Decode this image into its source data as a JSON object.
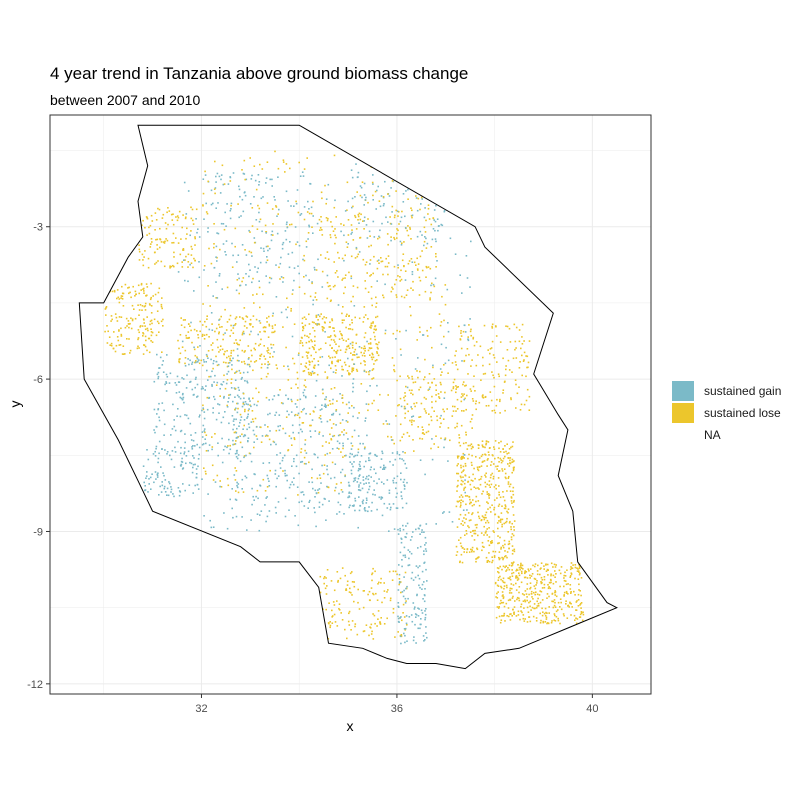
{
  "chart_data": {
    "type": "raster-map",
    "title": "4 year trend in Tanzania above ground biomass change",
    "subtitle": "between 2007 and 2010",
    "xlabel": "x",
    "ylabel": "y",
    "xlim": [
      28.9,
      41.2
    ],
    "ylim": [
      -12.2,
      -0.8
    ],
    "x_ticks": [
      32,
      36,
      40
    ],
    "y_ticks": [
      -3,
      -6,
      -9,
      -12
    ],
    "x_tick_labels": [
      "32",
      "36",
      "40"
    ],
    "y_tick_labels": [
      "-3",
      "-6",
      "-9",
      "-12"
    ],
    "grid": true,
    "legend_position": "right",
    "legend": [
      {
        "label": "sustained gain",
        "color": "#7bbac8"
      },
      {
        "label": "sustained lose",
        "color": "#ecc62c"
      },
      {
        "label": "NA",
        "color": "#ffffff"
      }
    ],
    "boundary": [
      [
        30.7,
        -1.0
      ],
      [
        34.0,
        -1.0
      ],
      [
        37.6,
        -3.0
      ],
      [
        37.8,
        -3.4
      ],
      [
        39.2,
        -4.7
      ],
      [
        38.8,
        -5.9
      ],
      [
        39.3,
        -6.7
      ],
      [
        39.5,
        -7.0
      ],
      [
        39.3,
        -7.9
      ],
      [
        39.6,
        -8.6
      ],
      [
        39.7,
        -9.6
      ],
      [
        40.3,
        -10.4
      ],
      [
        40.5,
        -10.5
      ],
      [
        39.5,
        -10.9
      ],
      [
        38.5,
        -11.3
      ],
      [
        37.8,
        -11.4
      ],
      [
        37.4,
        -11.7
      ],
      [
        36.8,
        -11.6
      ],
      [
        36.2,
        -11.6
      ],
      [
        35.8,
        -11.5
      ],
      [
        35.3,
        -11.3
      ],
      [
        34.6,
        -11.2
      ],
      [
        34.4,
        -10.1
      ],
      [
        34.0,
        -9.6
      ],
      [
        33.2,
        -9.6
      ],
      [
        32.8,
        -9.3
      ],
      [
        31.0,
        -8.6
      ],
      [
        30.7,
        -8.0
      ],
      [
        30.3,
        -7.2
      ],
      [
        29.6,
        -6.0
      ],
      [
        29.5,
        -4.5
      ],
      [
        30.0,
        -4.5
      ],
      [
        30.5,
        -3.6
      ],
      [
        30.8,
        -3.2
      ],
      [
        30.7,
        -2.5
      ],
      [
        30.9,
        -1.8
      ],
      [
        30.7,
        -1.0
      ]
    ]
  }
}
